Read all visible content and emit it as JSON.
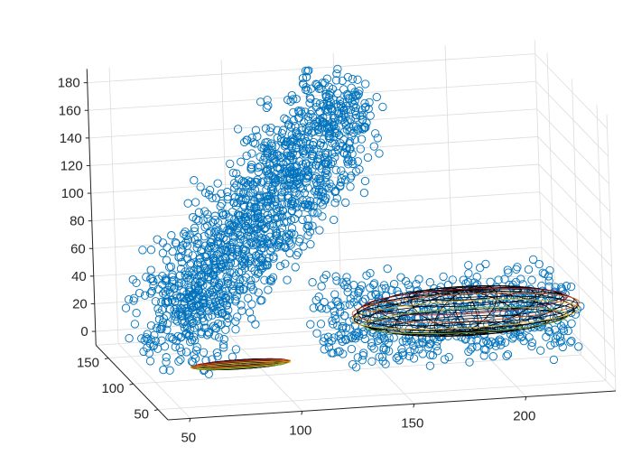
{
  "chart_data": {
    "type": "scatter",
    "view": "3d",
    "marker": "circle-open",
    "title": "",
    "xlabel": "",
    "ylabel": "",
    "zlabel": "",
    "x_ticks": [
      50,
      100,
      150,
      200
    ],
    "y_ticks": [
      50,
      100,
      150
    ],
    "z_ticks": [
      0,
      20,
      40,
      60,
      80,
      100,
      120,
      140,
      160,
      180
    ],
    "xlim": [
      40,
      240
    ],
    "ylim": [
      30,
      175
    ],
    "zlim": [
      -10,
      190
    ],
    "grid": true,
    "colors": {
      "points": "#0072BD",
      "wireframe_large": "#000000",
      "wireframe_small": "#000000",
      "curves": [
        "#A2142F",
        "#D95319",
        "#EDB120",
        "#77AC30"
      ]
    },
    "series": [
      {
        "kind": "scatter",
        "clusters": [
          {
            "x_range": [
              55,
              150
            ],
            "y_range": [
              70,
              170
            ],
            "z_range": [
              0,
              185
            ],
            "count": 1400
          },
          {
            "x_range": [
              120,
              230
            ],
            "y_range": [
              40,
              110
            ],
            "z_range": [
              10,
              60
            ],
            "count": 600
          }
        ]
      },
      {
        "kind": "ellipsoid",
        "center": [
          185,
          80,
          35
        ],
        "semi_axes": [
          50,
          25,
          15
        ]
      },
      {
        "kind": "ellipsoid",
        "center": [
          85,
          85,
          5
        ],
        "semi_axes": [
          22,
          4,
          3
        ]
      }
    ]
  }
}
